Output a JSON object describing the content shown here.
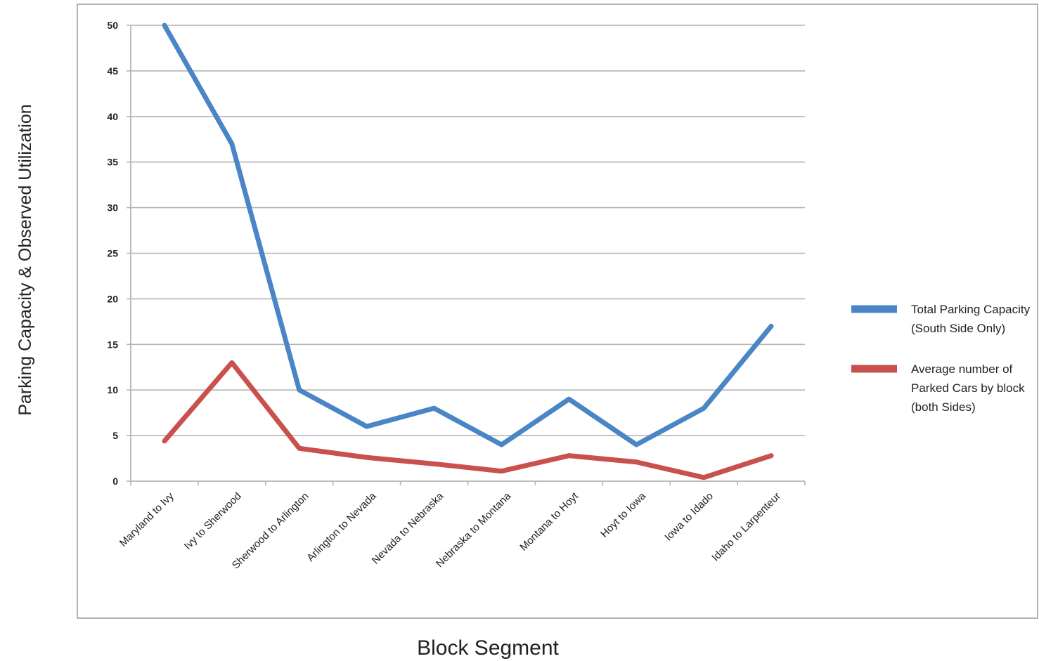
{
  "chart_data": {
    "type": "line",
    "title": "",
    "xlabel": "Block Segment",
    "ylabel": "Parking Capacity & Observed Utilization",
    "categories": [
      "Maryland to Ivy",
      "Ivy to Sherwood",
      "Sherwood to Arlington",
      "Arlington to Nevada",
      "Nevada to Nebraska",
      "Nebraska to Montana",
      "Montana to Hoyt",
      "Hoyt to Iowa",
      "Iowa to Idado",
      "Idaho to Larpenteur"
    ],
    "ylim": [
      0,
      50
    ],
    "yticks": [
      0,
      5,
      10,
      15,
      20,
      25,
      30,
      35,
      40,
      45,
      50
    ],
    "grid": true,
    "legend_position": "right",
    "series": [
      {
        "name": "Total Parking Capacity (South Side Only)",
        "legend_lines": [
          "Total Parking Capacity",
          "(South Side Only)"
        ],
        "color": "#4a86c5",
        "values": [
          50,
          37,
          10,
          6,
          8,
          4,
          9,
          4,
          8,
          17
        ]
      },
      {
        "name": "Average number of Parked Cars by block (both Sides)",
        "legend_lines": [
          "Average number of",
          "Parked Cars by block",
          "(both Sides)"
        ],
        "color": "#c9504c",
        "values": [
          4.4,
          13,
          3.6,
          2.6,
          1.9,
          1.1,
          2.8,
          2.1,
          0.4,
          2.8
        ]
      }
    ]
  }
}
